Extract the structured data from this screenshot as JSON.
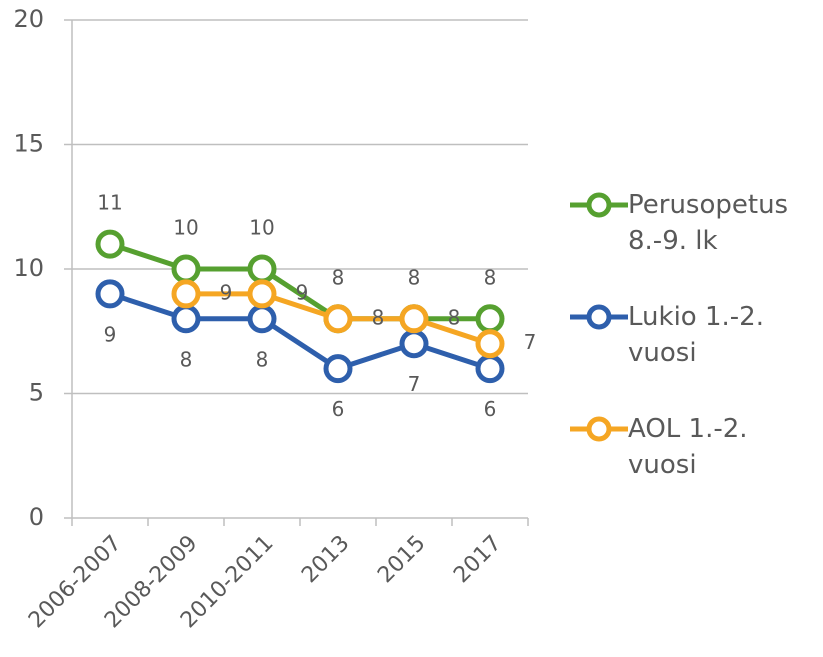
{
  "chart_data": {
    "type": "line",
    "categories": [
      "2006-2007",
      "2008-2009",
      "2010-2011",
      "2013",
      "2015",
      "2017"
    ],
    "series": [
      {
        "name": "Perusopetus 8.-9. lk",
        "color": "#56a030",
        "values": [
          11,
          10,
          10,
          8,
          8,
          8
        ]
      },
      {
        "name": "Lukio 1.-2. vuosi",
        "color": "#2e5fac",
        "values": [
          9,
          8,
          8,
          6,
          7,
          6
        ]
      },
      {
        "name": "AOL 1.-2. vuosi",
        "color": "#f5a623",
        "values": [
          null,
          9,
          9,
          8,
          8,
          7
        ]
      }
    ],
    "ylim": [
      0,
      20
    ],
    "yticks": [
      0,
      5,
      10,
      15,
      20
    ],
    "grid": true,
    "legend": "right"
  }
}
